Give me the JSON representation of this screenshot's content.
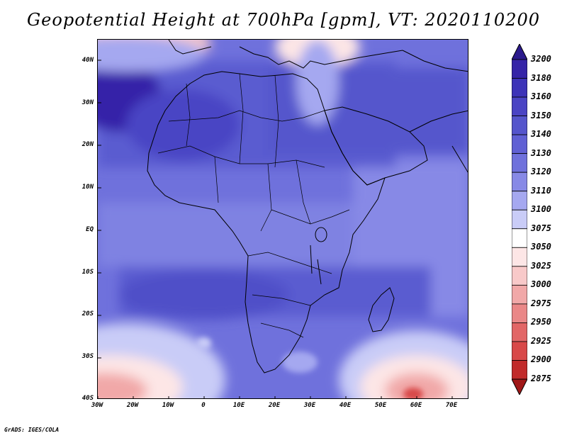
{
  "title": "Geopotential Height at 700hPa [gpm], VT: 2020110200",
  "map": {
    "lat_labels": [
      "40N",
      "30N",
      "20N",
      "10N",
      "EQ",
      "10S",
      "20S",
      "30S",
      "40S"
    ],
    "lon_labels": [
      "30W",
      "20W",
      "10W",
      "0",
      "10E",
      "20E",
      "30E",
      "40E",
      "50E",
      "60E",
      "70E"
    ],
    "features": [
      {
        "name": "high-pressure-north-atlantic"
      },
      {
        "name": "low-mediterranean"
      },
      {
        "name": "low-south-atlantic"
      },
      {
        "name": "low-southern-indian-ocean"
      }
    ]
  },
  "colorbar": {
    "levels": [
      "3200",
      "3180",
      "3160",
      "3150",
      "3140",
      "3130",
      "3120",
      "3110",
      "3100",
      "3075",
      "3050",
      "3025",
      "3000",
      "2975",
      "2950",
      "2925",
      "2900",
      "2875"
    ],
    "colors": [
      "#2b1a8c",
      "#3524a8",
      "#3d33b8",
      "#4a44c4",
      "#5555cc",
      "#6060d4",
      "#6f71dc",
      "#8789e6",
      "#a5a8f0",
      "#c9ccf7",
      "#ffffff",
      "#fde6e6",
      "#f8c9c9",
      "#f1a8a8",
      "#ea8787",
      "#e26666",
      "#d84848",
      "#c12b2b",
      "#a01818"
    ]
  },
  "credit": "GrADS: IGES/COLA"
}
